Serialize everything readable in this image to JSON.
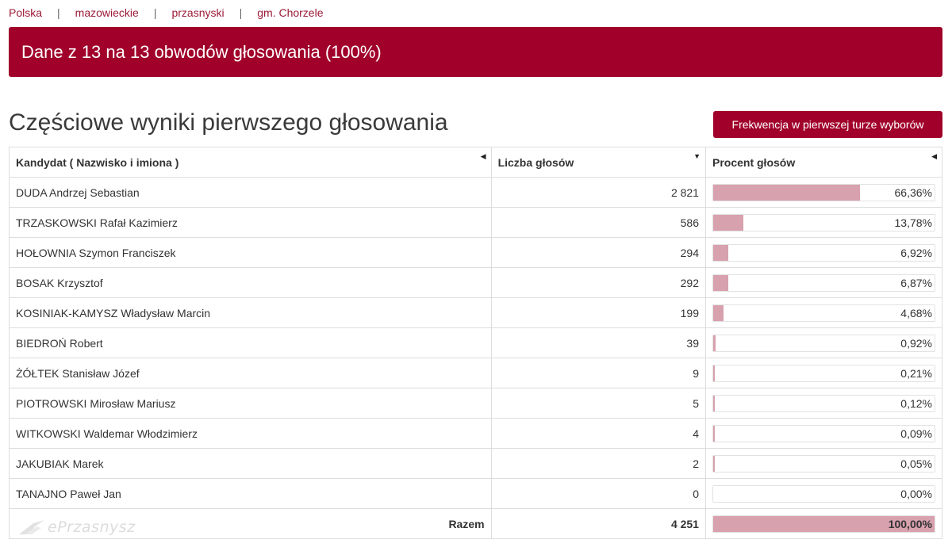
{
  "breadcrumb": [
    "Polska",
    "mazowieckie",
    "przasnyski",
    "gm. Chorzele"
  ],
  "banner": {
    "text": "Dane z 13 na 13 obwodów głosowania (100%)"
  },
  "section": {
    "title": "Częściowe wyniki pierwszego głosowania"
  },
  "frequency_button": {
    "label": "Frekwencja w pierwszej turze wyborów"
  },
  "table": {
    "headers": {
      "candidate": "Kandydat ( Nazwisko i imiona )",
      "votes": "Liczba głosów",
      "percent": "Procent głosów"
    },
    "rows": [
      {
        "name": "DUDA Andrzej Sebastian",
        "votes": "2 821",
        "percent": "66,36%",
        "fill": 0.6636
      },
      {
        "name": "TRZASKOWSKI Rafał Kazimierz",
        "votes": "586",
        "percent": "13,78%",
        "fill": 0.1378
      },
      {
        "name": "HOŁOWNIA Szymon Franciszek",
        "votes": "294",
        "percent": "6,92%",
        "fill": 0.0692
      },
      {
        "name": "BOSAK Krzysztof",
        "votes": "292",
        "percent": "6,87%",
        "fill": 0.0687
      },
      {
        "name": "KOSINIAK-KAMYSZ Władysław Marcin",
        "votes": "199",
        "percent": "4,68%",
        "fill": 0.0468
      },
      {
        "name": "BIEDROŃ Robert",
        "votes": "39",
        "percent": "0,92%",
        "fill": 0.0092
      },
      {
        "name": "ŻÓŁTEK Stanisław Józef",
        "votes": "9",
        "percent": "0,21%",
        "fill": 0.0021
      },
      {
        "name": "PIOTROWSKI Mirosław Mariusz",
        "votes": "5",
        "percent": "0,12%",
        "fill": 0.0012
      },
      {
        "name": "WITKOWSKI Waldemar Włodzimierz",
        "votes": "4",
        "percent": "0,09%",
        "fill": 0.0009
      },
      {
        "name": "JAKUBIAK Marek",
        "votes": "2",
        "percent": "0,05%",
        "fill": 0.0005
      },
      {
        "name": "TANAJNO Paweł Jan",
        "votes": "0",
        "percent": "0,00%",
        "fill": 0
      }
    ],
    "total": {
      "label": "Razem",
      "votes": "4 251",
      "percent": "100,00%",
      "fill": 1.0
    }
  },
  "watermark": {
    "text": "ePrzasnysz"
  },
  "colors": {
    "accent": "#a0002a",
    "link": "#9b1a36",
    "bar_fill": "#d8a1ae"
  }
}
